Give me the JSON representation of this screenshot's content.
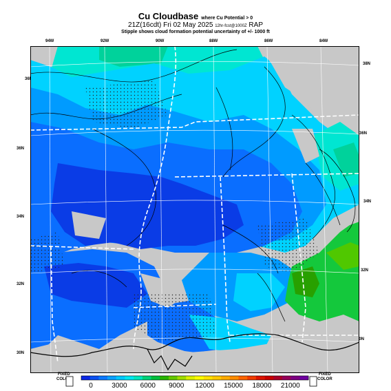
{
  "header": {
    "title": "Cu Cloudbase",
    "title_note": "where Cu Potential > 0",
    "line2": "21Z(16cdt) Fri 02 May 2025",
    "line2_note": "12hr-fcst@1000Z",
    "line2_model": "RAP",
    "line3": "Stipple shows cloud formation potential uncertainty of +/- 1000 ft"
  },
  "axes": {
    "lon_labels": [
      "94W",
      "92W",
      "90W",
      "88W",
      "86W",
      "84W"
    ],
    "lat_labels_left": [
      "36N",
      "34N",
      "32N",
      "30N"
    ],
    "lat_labels_right": [
      "38N",
      "36N",
      "34N",
      "32N",
      "30N"
    ]
  },
  "colorbar": {
    "left_label_top": "FIXED",
    "left_label_bottom": "COLOR",
    "right_label_top": "FIXED",
    "right_label_bottom": "COLOR",
    "ticks": [
      "0",
      "3000",
      "6000",
      "9000",
      "12000",
      "15000",
      "18000",
      "21000"
    ],
    "colors": [
      "#0a28e6",
      "#0a50f0",
      "#0a78ff",
      "#0aa0ff",
      "#00c8ff",
      "#00e6f0",
      "#00e6be",
      "#00d278",
      "#00be3c",
      "#28b400",
      "#64c800",
      "#a0dc00",
      "#dcf000",
      "#ffff00",
      "#ffe100",
      "#ffc800",
      "#ffaa00",
      "#ff8c00",
      "#ff6400",
      "#f03c00",
      "#dc1400",
      "#c80000",
      "#aa0028",
      "#96005a",
      "#7d0082",
      "#6e00a0"
    ]
  },
  "map": {
    "region": "Mid-South / Lower Mississippi Valley",
    "background_color": "#c8c8c8",
    "colors": {
      "deep_blue": "#0a3ce6",
      "blue": "#0a6eff",
      "sky": "#009bff",
      "cyan": "#00d2ff",
      "aqua": "#00e6d2",
      "teal": "#00d29b",
      "green": "#14c83c",
      "dark_green": "#28a000",
      "lime": "#50c800",
      "border": "#ffffff",
      "coast": "#000000",
      "contour": "#000000"
    }
  }
}
